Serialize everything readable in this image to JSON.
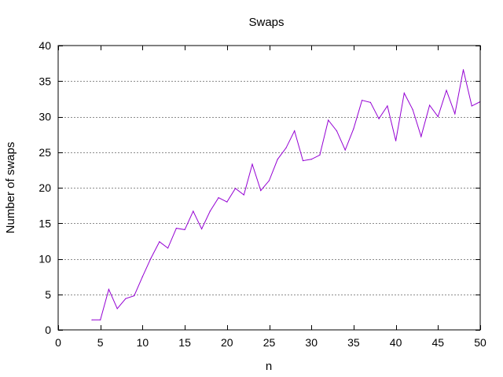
{
  "chart_data": {
    "type": "line",
    "title": "Swaps",
    "xlabel": "n",
    "ylabel": "Number of swaps",
    "xlim": [
      0,
      50
    ],
    "ylim": [
      0,
      40
    ],
    "xticks": [
      0,
      5,
      10,
      15,
      20,
      25,
      30,
      35,
      40,
      45,
      50
    ],
    "yticks": [
      0,
      5,
      10,
      15,
      20,
      25,
      30,
      35,
      40
    ],
    "grid": "horizontal-dotted",
    "series": [
      {
        "color": "#9400d3",
        "x": [
          4,
          5,
          6,
          7,
          8,
          9,
          10,
          11,
          12,
          13,
          14,
          15,
          16,
          17,
          18,
          19,
          20,
          21,
          22,
          23,
          24,
          25,
          26,
          27,
          28,
          29,
          30,
          31,
          32,
          33,
          34,
          35,
          36,
          37,
          38,
          39,
          40,
          41,
          42,
          43,
          44,
          45,
          46,
          47,
          48,
          49,
          50
        ],
        "y": [
          1.4,
          1.4,
          5.7,
          3.0,
          4.4,
          4.8,
          7.5,
          10.1,
          12.4,
          11.5,
          14.3,
          14.1,
          16.7,
          14.2,
          16.7,
          18.6,
          18.0,
          19.9,
          19.0,
          23.3,
          19.6,
          21.0,
          24.0,
          25.6,
          28.0,
          23.8,
          24.0,
          24.6,
          29.5,
          28.0,
          25.3,
          28.3,
          32.3,
          32.0,
          29.7,
          31.5,
          26.6,
          33.3,
          31.0,
          27.2,
          31.6,
          30.0,
          33.7,
          30.4,
          36.6,
          31.5,
          32.1
        ]
      }
    ]
  }
}
